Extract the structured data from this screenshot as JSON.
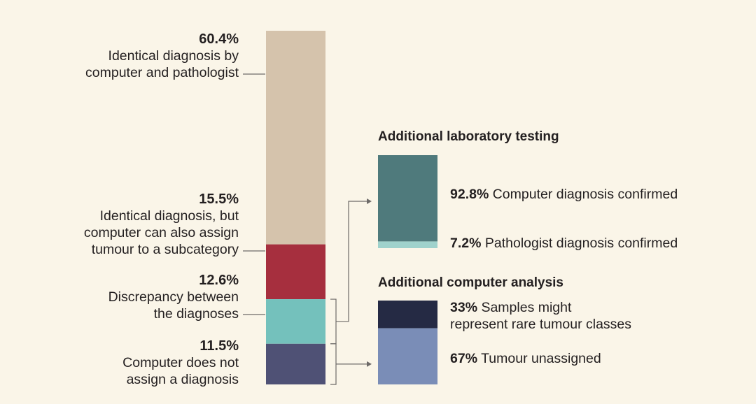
{
  "chart_data": {
    "type": "bar",
    "main_bar": {
      "segments": [
        {
          "value": 60.4,
          "pct_label": "60.4%",
          "lines": [
            "Identical diagnosis by",
            "computer and pathologist"
          ],
          "color": "#d5c3ac"
        },
        {
          "value": 15.5,
          "pct_label": "15.5%",
          "lines": [
            "Identical diagnosis, but",
            "computer can also assign",
            "tumour to a subcategory"
          ],
          "color": "#a62f3e"
        },
        {
          "value": 12.6,
          "pct_label": "12.6%",
          "lines": [
            "Discrepancy between",
            "the diagnoses"
          ],
          "color": "#74c1bc"
        },
        {
          "value": 11.5,
          "pct_label": "11.5%",
          "lines": [
            "Computer does not",
            "assign a diagnosis"
          ],
          "color": "#4f5175"
        }
      ]
    },
    "lab_testing": {
      "title": "Additional laboratory testing",
      "segments": [
        {
          "value": 92.8,
          "pct_label": "92.8%",
          "text": " Computer diagnosis confirmed",
          "color": "#4f7a7c"
        },
        {
          "value": 7.2,
          "pct_label": "7.2%",
          "text": " Pathologist diagnosis confirmed",
          "color": "#9fd2cc"
        }
      ]
    },
    "computer_analysis": {
      "title": "Additional computer analysis",
      "segments": [
        {
          "value": 33,
          "pct_label": "33%",
          "lines": [
            " Samples might",
            "represent rare tumour classes"
          ],
          "color": "#252a44"
        },
        {
          "value": 67,
          "pct_label": "67%",
          "lines": [
            " Tumour unassigned"
          ],
          "color": "#7a8db7"
        }
      ]
    }
  }
}
